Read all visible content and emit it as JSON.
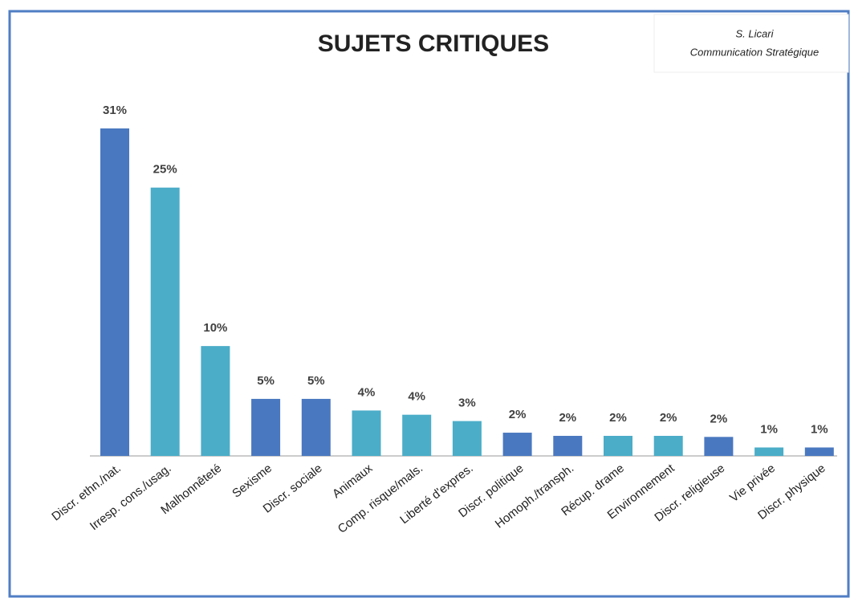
{
  "chart_data": {
    "type": "bar",
    "title": "SUJETS CRITIQUES",
    "annotations": [
      "S. Licari",
      "Communication Stratégique"
    ],
    "categories": [
      "Discr. ethn./nat.",
      "Irresp. cons./usag.",
      "Malhonnêteté",
      "Sexisme",
      "Discr. sociale",
      "Animaux",
      "Comp. risque/mals.",
      "Liberté d'expres.",
      "Discr. politique",
      "Homoph./transph.",
      "Récup. drame",
      "Environnement",
      "Discr. religieuse",
      "Vie privée",
      "Discr. physique"
    ],
    "values": [
      31,
      25.4,
      10.4,
      5.4,
      5.4,
      4.3,
      3.9,
      3.3,
      2.2,
      1.9,
      1.9,
      1.9,
      1.8,
      0.8,
      0.8
    ],
    "value_labels": [
      "31%",
      "25%",
      "10%",
      "5%",
      "5%",
      "4%",
      "4%",
      "3%",
      "2%",
      "2%",
      "2%",
      "2%",
      "2%",
      "1%",
      "1%"
    ],
    "colors": [
      "#4a78c0",
      "#4badc8",
      "#4badc8",
      "#4a78c0",
      "#4a78c0",
      "#4badc8",
      "#4badc8",
      "#4badc8",
      "#4a78c0",
      "#4a78c0",
      "#4badc8",
      "#4badc8",
      "#4a78c0",
      "#4badc8",
      "#4a78c0"
    ]
  }
}
